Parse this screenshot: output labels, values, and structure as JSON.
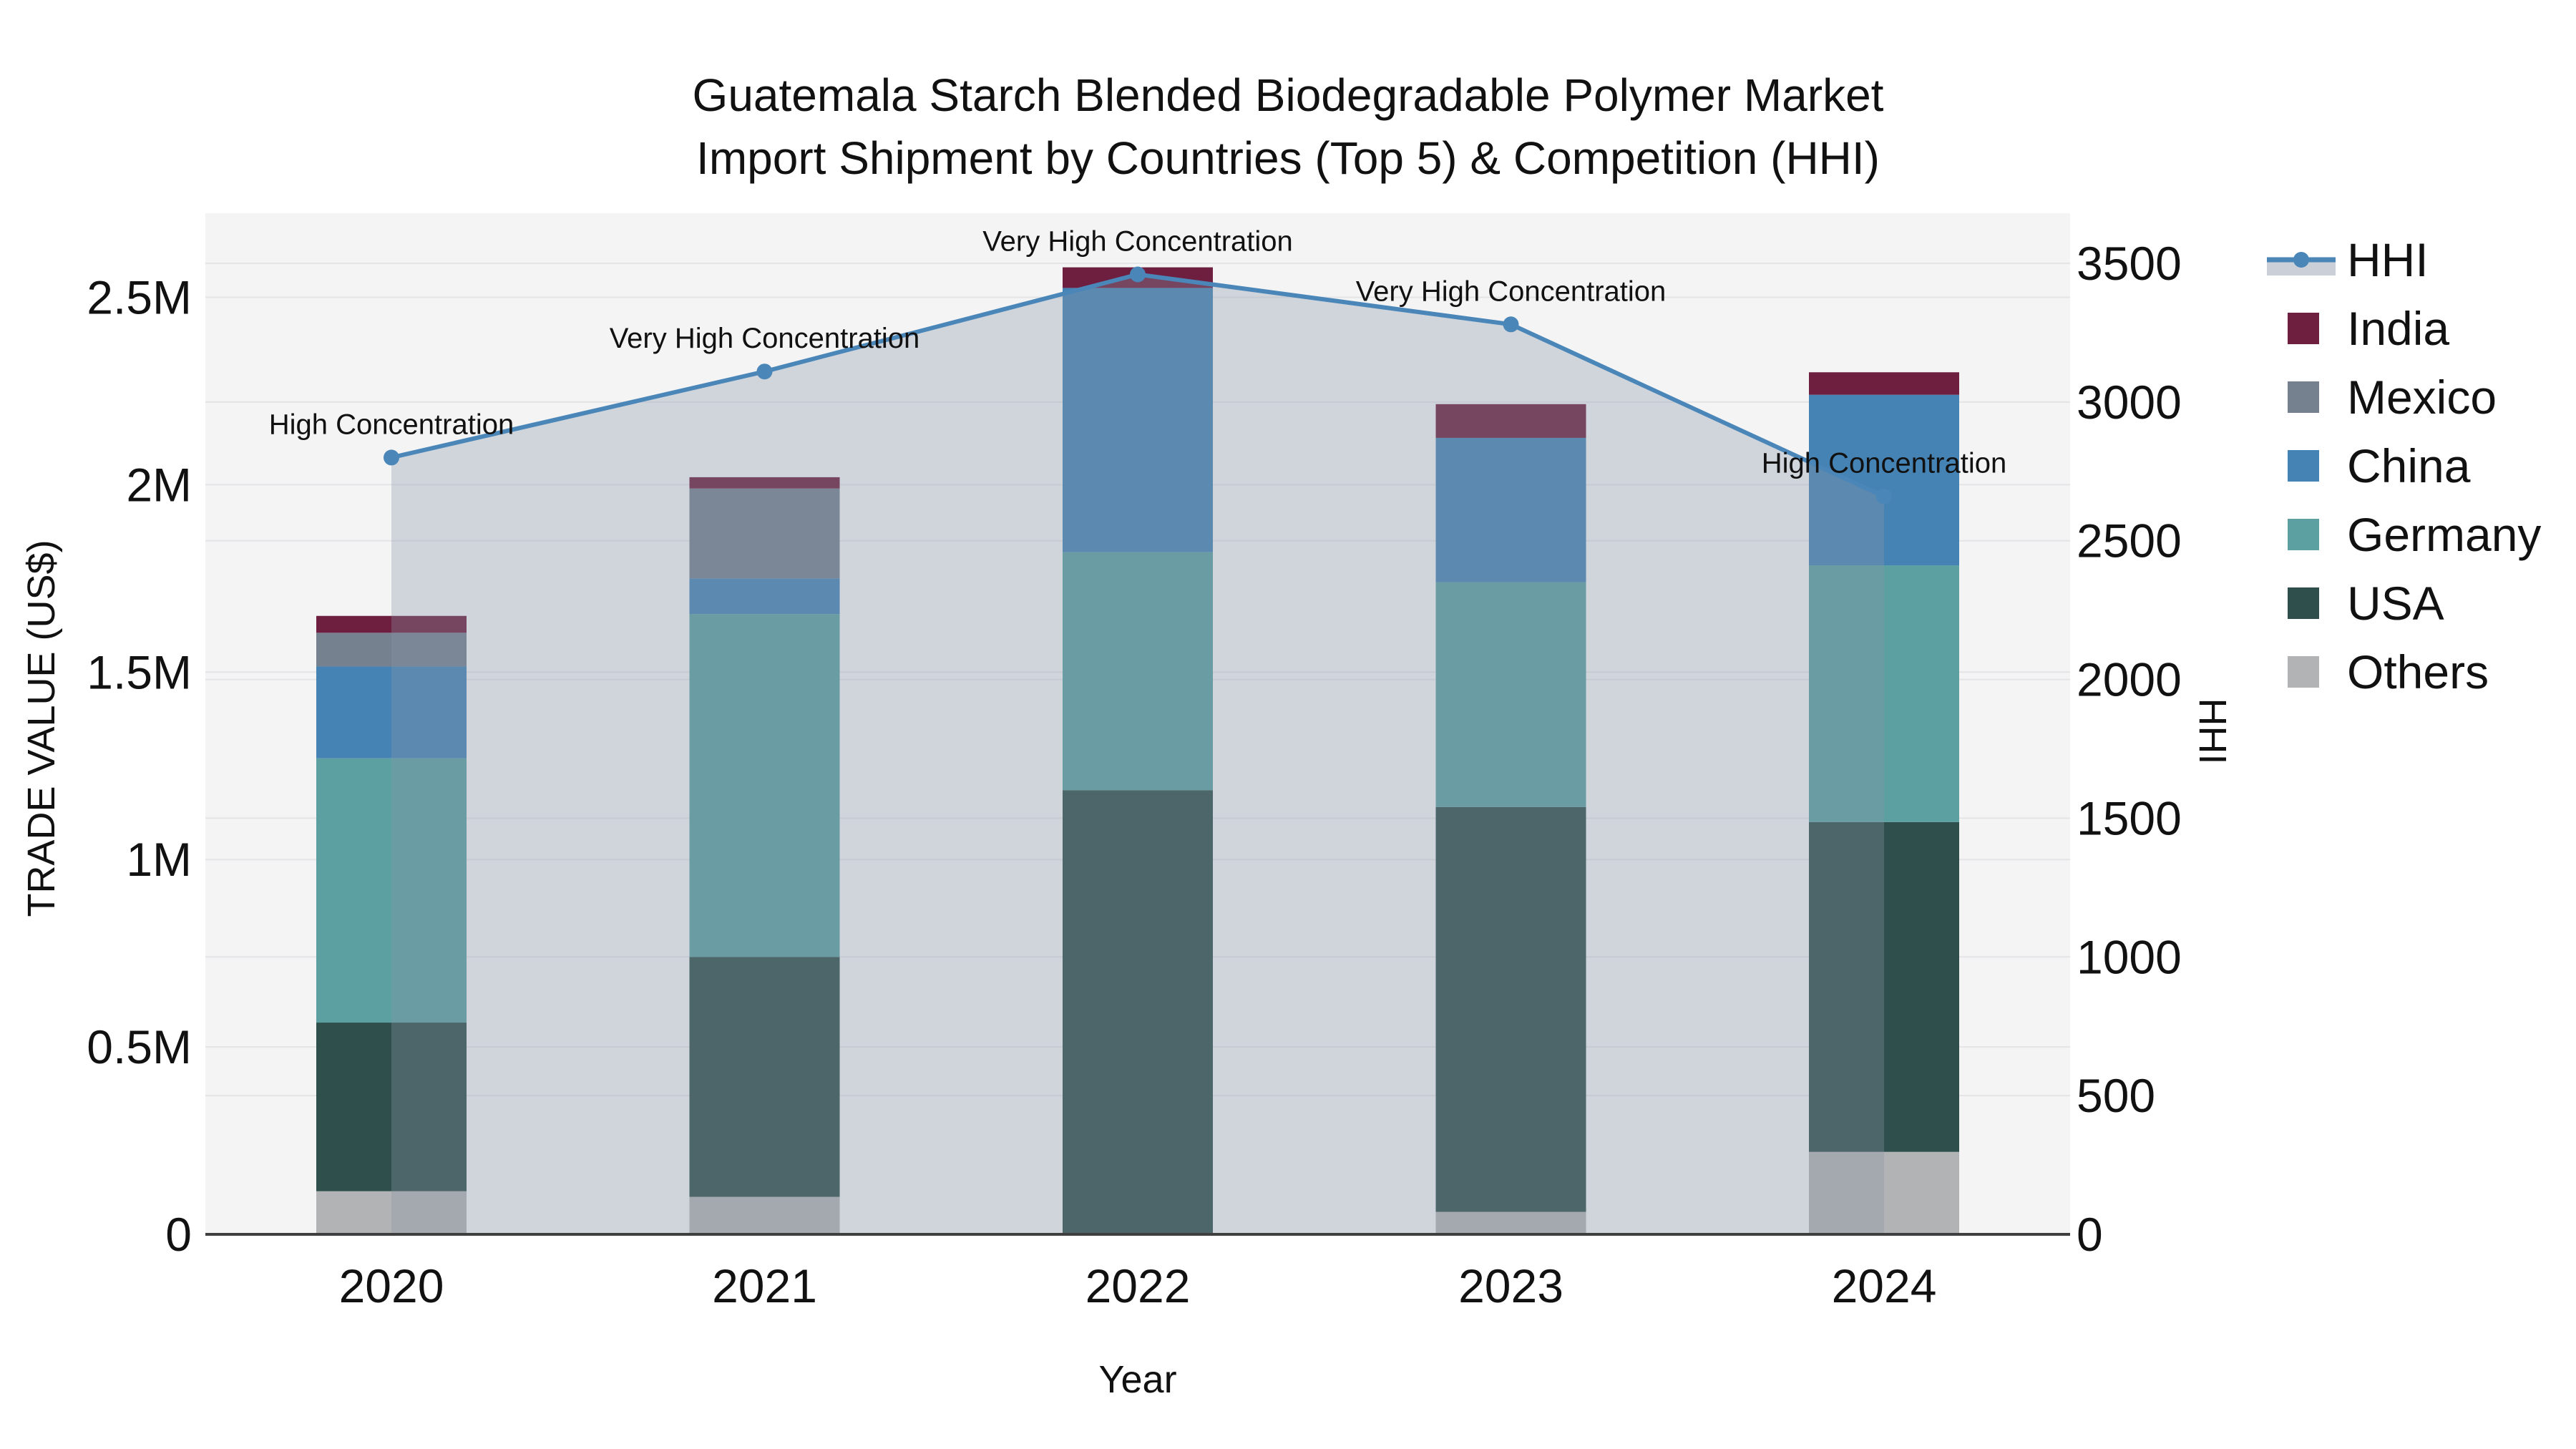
{
  "title": {
    "line1": "Guatemala Starch Blended Biodegradable Polymer Market",
    "line2": "Import Shipment by Countries (Top 5) & Competition (HHI)"
  },
  "axes": {
    "x": {
      "label": "Year",
      "ticks": [
        "2020",
        "2021",
        "2022",
        "2023",
        "2024"
      ]
    },
    "y_left": {
      "label": "TRADE VALUE (US$)",
      "ticks": [
        {
          "v": 0,
          "label": "0"
        },
        {
          "v": 0.5,
          "label": "0.5M"
        },
        {
          "v": 1,
          "label": "1M"
        },
        {
          "v": 1.5,
          "label": "1.5M"
        },
        {
          "v": 2,
          "label": "2M"
        },
        {
          "v": 2.5,
          "label": "2.5M"
        }
      ],
      "range_millions": [
        0,
        2.74
      ]
    },
    "y_right": {
      "label": "HHI",
      "ticks": [
        {
          "v": 0,
          "label": "0"
        },
        {
          "v": 500,
          "label": "500"
        },
        {
          "v": 1000,
          "label": "1000"
        },
        {
          "v": 1500,
          "label": "1500"
        },
        {
          "v": 2000,
          "label": "2000"
        },
        {
          "v": 2500,
          "label": "2500"
        },
        {
          "v": 3000,
          "label": "3000"
        },
        {
          "v": 3500,
          "label": "3500"
        }
      ],
      "range": [
        0,
        3680
      ]
    }
  },
  "legend": {
    "items": [
      {
        "label": "HHI",
        "type": "line",
        "color_key": "hhi_line"
      },
      {
        "label": "India",
        "type": "swatch",
        "color_key": "india"
      },
      {
        "label": "Mexico",
        "type": "swatch",
        "color_key": "mexico"
      },
      {
        "label": "China",
        "type": "swatch",
        "color_key": "china"
      },
      {
        "label": "Germany",
        "type": "swatch",
        "color_key": "germany"
      },
      {
        "label": "USA",
        "type": "swatch",
        "color_key": "usa"
      },
      {
        "label": "Others",
        "type": "swatch",
        "color_key": "others"
      }
    ]
  },
  "chart_data": {
    "type": "bar",
    "subtype": "stacked-bars-left-axis-plus-line-area-right-axis",
    "title": "Guatemala Starch Blended Biodegradable Polymer Market — Import Shipment by Countries (Top 5) & Competition (HHI)",
    "xlabel": "Year",
    "ylabel_left": "TRADE VALUE (US$)",
    "ylabel_right": "HHI",
    "unit": "US$ millions",
    "categories": [
      "2020",
      "2021",
      "2022",
      "2023",
      "2024"
    ],
    "series": [
      {
        "name": "Others",
        "color_key": "others",
        "values": [
          0.115,
          0.1,
          0.0,
          0.06,
          0.22
        ]
      },
      {
        "name": "USA",
        "color_key": "usa",
        "values": [
          0.45,
          0.64,
          1.185,
          1.08,
          0.88
        ]
      },
      {
        "name": "Germany",
        "color_key": "germany",
        "values": [
          0.705,
          0.915,
          0.635,
          0.6,
          0.685
        ]
      },
      {
        "name": "China",
        "color_key": "china",
        "values": [
          0.245,
          0.095,
          0.705,
          0.385,
          0.455
        ]
      },
      {
        "name": "Mexico",
        "color_key": "mexico",
        "values": [
          0.09,
          0.24,
          0.0,
          0.0,
          0.0
        ]
      },
      {
        "name": "India",
        "color_key": "india",
        "values": [
          0.045,
          0.03,
          0.055,
          0.09,
          0.06
        ]
      }
    ],
    "stack_totals_millions": [
      1.65,
      2.02,
      2.58,
      2.215,
      2.3
    ],
    "line_series": {
      "name": "HHI",
      "axis": "right",
      "values": [
        2800,
        3110,
        3460,
        3280,
        2660
      ]
    },
    "annotations": [
      "High Concentration",
      "Very High Concentration",
      "Very High Concentration",
      "Very High Concentration",
      "High Concentration"
    ],
    "grid": true,
    "legend_position": "right"
  },
  "colors": {
    "india": "#6E1E3E",
    "mexico": "#75818F",
    "china": "#4583B5",
    "germany": "#5CA0A2",
    "usa": "#2F4F4C",
    "others": "#B1B3B4",
    "hhi_line": "#4A86B8",
    "area_fill": "rgba(136,149,167,0.33)",
    "legend_band": "#CBD0D8",
    "plot_bg": "#F4F4F5",
    "grid": "#E4E4E7",
    "axis_line": "#3F3F3F",
    "text": "#111111"
  }
}
